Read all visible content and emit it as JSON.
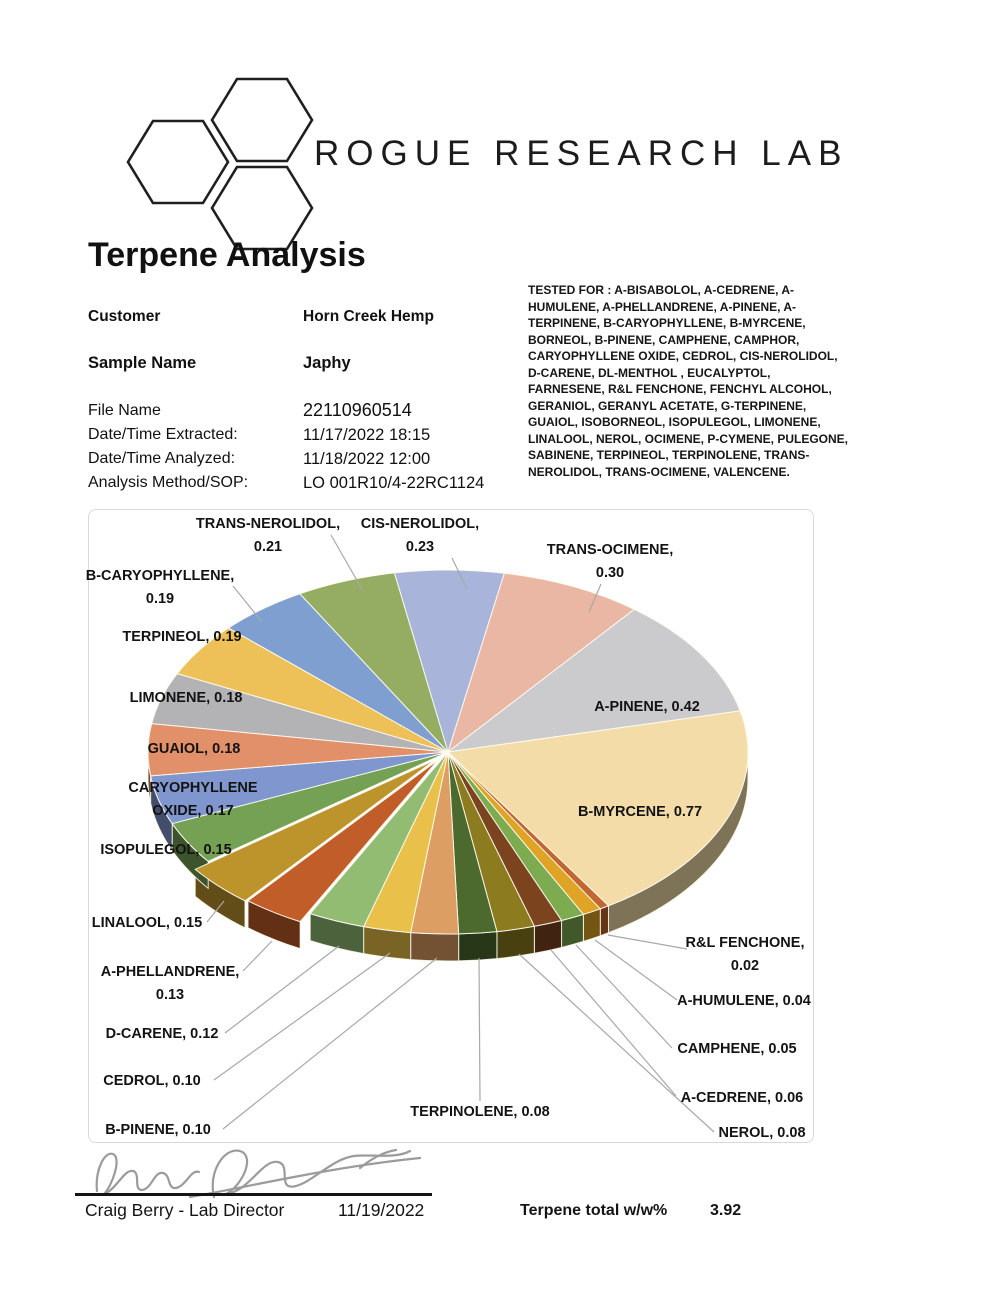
{
  "logo": {
    "brand": "ROGUE RESEARCH LAB"
  },
  "title": "Terpene Analysis",
  "info": {
    "customer_label": "Customer",
    "customer": "Horn Creek Hemp",
    "sample_label": "Sample Name",
    "sample": "Japhy",
    "file_label": "File Name",
    "file": "22110960514",
    "extracted_label": "Date/Time Extracted:",
    "extracted": "11/17/2022 18:15",
    "analyzed_label": "Date/Time  Analyzed:",
    "analyzed": "11/18/2022 12:00",
    "method_label": "Analysis Method/SOP:",
    "method": "LO 001R10/4-22RC1124"
  },
  "tested_for": "TESTED FOR : A-BISABOLOL, A-CEDRENE, A-HUMULENE, A-PHELLANDRENE,  A-PINENE, A-TERPINENE, B-CARYOPHYLLENE, B-MYRCENE, BORNEOL, B-PINENE, CAMPHENE, CAMPHOR, CARYOPHYLLENE OXIDE, CEDROL, CIS-NEROLIDOL,  D-CARENE, DL-MENTHOL , EUCALYPTOL, FARNESENE, R&L FENCHONE, FENCHYL ALCOHOL, GERANIOL, GERANYL ACETATE, G-TERPINENE, GUAIOL, ISOBORNEOL, ISOPULEGOL,  LIMONENE, LINALOOL, NEROL, OCIMENE, P-CYMENE, PULEGONE, SABINENE, TERPINEOL, TERPINOLENE, TRANS-NEROLIDOL, TRANS-OCIMENE, VALENCENE.",
  "chart_data": {
    "type": "pie",
    "style": "3d-exploded",
    "unit": "w/w%",
    "total": 3.92,
    "legend_position": "data-labels",
    "slices": [
      {
        "label": "CIS-NEROLIDOL",
        "value": 0.23,
        "color": "#a9b4da"
      },
      {
        "label": "TRANS-OCIMENE",
        "value": 0.3,
        "color": "#e9b7a4"
      },
      {
        "label": "A-PINENE",
        "value": 0.42,
        "color": "#cbcbcd"
      },
      {
        "label": "B-MYRCENE",
        "value": 0.77,
        "color": "#f3dca8"
      },
      {
        "label": "R&L FENCHONE",
        "value": 0.02,
        "color": "#c2672f"
      },
      {
        "label": "A-HUMULENE",
        "value": 0.04,
        "color": "#dfa426"
      },
      {
        "label": "CAMPHENE",
        "value": 0.05,
        "color": "#7dac50"
      },
      {
        "label": "A-CEDRENE",
        "value": 0.06,
        "color": "#7c431f"
      },
      {
        "label": "NEROL",
        "value": 0.08,
        "color": "#8d7c1f"
      },
      {
        "label": "TERPINOLENE",
        "value": 0.08,
        "color": "#4c6a2d"
      },
      {
        "label": "B-PINENE",
        "value": 0.1,
        "color": "#dd9e63"
      },
      {
        "label": "CEDROL",
        "value": 0.1,
        "color": "#e9c14a"
      },
      {
        "label": "D-CARENE",
        "value": 0.12,
        "color": "#93bc73"
      },
      {
        "label": "A-PHELLANDRENE",
        "value": 0.13,
        "color": "#c05d28"
      },
      {
        "label": "LINALOOL",
        "value": 0.15,
        "color": "#bd932c"
      },
      {
        "label": "ISOPULEGOL",
        "value": 0.15,
        "color": "#74a153"
      },
      {
        "label": "CARYOPHYLLENE OXIDE",
        "value": 0.17,
        "color": "#7f96cf"
      },
      {
        "label": "GUAIOL",
        "value": 0.18,
        "color": "#e2906a"
      },
      {
        "label": "LIMONENE",
        "value": 0.18,
        "color": "#b3b3b5"
      },
      {
        "label": "TERPINEOL",
        "value": 0.19,
        "color": "#edc157"
      },
      {
        "label": "B-CARYOPHYLLENE",
        "value": 0.19,
        "color": "#7e9fd0"
      },
      {
        "label": "TRANS-NEROLIDOL",
        "value": 0.21,
        "color": "#94ad62"
      }
    ]
  },
  "footer": {
    "signer": "Craig Berry - Lab Director",
    "date": "11/19/2022",
    "total_label": "Terpene total w/w%",
    "total_value": "3.92"
  }
}
